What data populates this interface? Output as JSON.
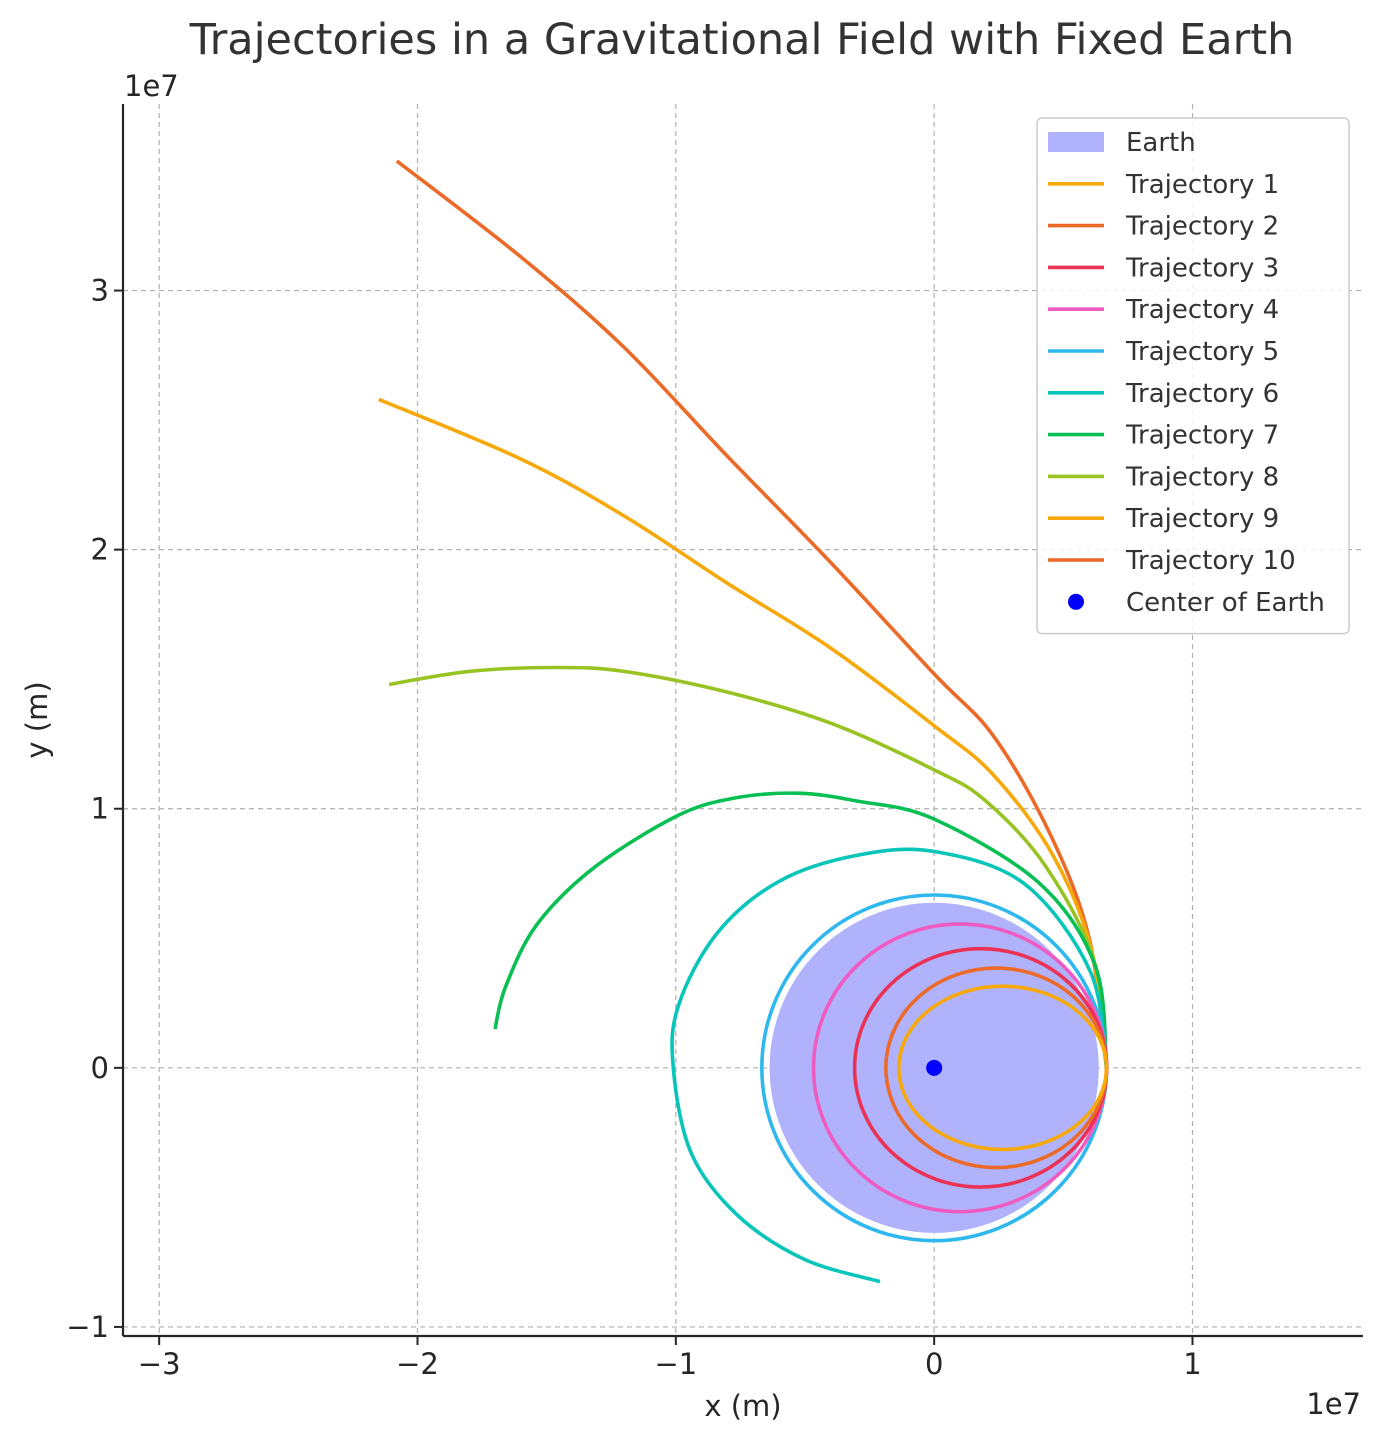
{
  "chart_data": {
    "type": "line",
    "title": "Trajectories in a Gravitational Field with Fixed Earth",
    "xlabel": "x (m)",
    "ylabel": "y (m)",
    "x_offset_label": "1e7",
    "y_offset_label": "1e7",
    "xlim": [
      -31400000,
      16600000
    ],
    "ylim": [
      -10350000,
      37200000
    ],
    "xticks": [
      {
        "value": -30000000,
        "label": "−3"
      },
      {
        "value": -20000000,
        "label": "−2"
      },
      {
        "value": -10000000,
        "label": "−1"
      },
      {
        "value": 0,
        "label": "0"
      },
      {
        "value": 10000000,
        "label": "1"
      }
    ],
    "yticks": [
      {
        "value": -10000000,
        "label": "−1"
      },
      {
        "value": 0,
        "label": "0"
      },
      {
        "value": 10000000,
        "label": "1"
      },
      {
        "value": 20000000,
        "label": "2"
      },
      {
        "value": 30000000,
        "label": "3"
      }
    ],
    "grid": true,
    "legend_position": "top-right",
    "earth": {
      "name": "Earth",
      "center": [
        0,
        0
      ],
      "radius": 6371000,
      "color": "#b0b2fc"
    },
    "center_point": {
      "name": "Center of Earth",
      "x": 0,
      "y": 0,
      "color": "#0000ff"
    },
    "start_point": [
      6671000,
      0
    ],
    "series": [
      {
        "name": "Trajectory 1",
        "color": "#f7a80a",
        "closed": true,
        "apoapsis": 1550000,
        "ellipse": {
          "center_x": 2650000,
          "semi_major": 4020000,
          "semi_minor": 3150000
        }
      },
      {
        "name": "Trajectory 2",
        "color": "#ec6a27",
        "closed": true,
        "apoapsis": 2300000,
        "ellipse": {
          "center_x": 2400000,
          "semi_major": 4270000,
          "semi_minor": 3850000
        }
      },
      {
        "name": "Trajectory 3",
        "color": "#eb3255",
        "closed": true,
        "apoapsis": 3130000,
        "ellipse": {
          "center_x": 1800000,
          "semi_major": 4880000,
          "semi_minor": 4600000
        }
      },
      {
        "name": "Trajectory 4",
        "color": "#ef5bc1",
        "closed": true,
        "apoapsis": 4510000,
        "ellipse": {
          "center_x": 1000000,
          "semi_major": 5670000,
          "semi_minor": 5550000
        }
      },
      {
        "name": "Trajectory 5",
        "color": "#2fb8ed",
        "closed": true,
        "apoapsis": 6671000,
        "ellipse": {
          "center_x": 0,
          "semi_major": 6671000,
          "semi_minor": 6671000
        }
      },
      {
        "name": "Trajectory 6",
        "color": "#07c5b9",
        "closed": false,
        "points": [
          [
            6671000,
            0
          ],
          [
            6050000,
            3700000
          ],
          [
            3500000,
            7100000
          ],
          [
            0,
            8350000
          ],
          [
            -3000000,
            8200000
          ],
          [
            -6000000,
            7200000
          ],
          [
            -8400000,
            5200000
          ],
          [
            -9900000,
            2400000
          ],
          [
            -10100000,
            0
          ],
          [
            -9400000,
            -3300000
          ],
          [
            -7600000,
            -5700000
          ],
          [
            -5000000,
            -7400000
          ],
          [
            -2100000,
            -8250000
          ]
        ]
      },
      {
        "name": "Trajectory 7",
        "color": "#07bf52",
        "closed": false,
        "points": [
          [
            6671000,
            0
          ],
          [
            6250000,
            3900000
          ],
          [
            4100000,
            7100000
          ],
          [
            0,
            9600000
          ],
          [
            -3000000,
            10300000
          ],
          [
            -5300000,
            10600000
          ],
          [
            -7800000,
            10400000
          ],
          [
            -10000000,
            9700000
          ],
          [
            -13200000,
            7700000
          ],
          [
            -15400000,
            5500000
          ],
          [
            -16600000,
            3100000
          ],
          [
            -17000000,
            1500000
          ]
        ]
      },
      {
        "name": "Trajectory 8",
        "color": "#99c323",
        "closed": false,
        "points": [
          [
            6671000,
            0
          ],
          [
            6200000,
            4100000
          ],
          [
            4300000,
            7800000
          ],
          [
            2000000,
            10300000
          ],
          [
            0,
            11500000
          ],
          [
            -4000000,
            13300000
          ],
          [
            -8000000,
            14500000
          ],
          [
            -12000000,
            15300000
          ],
          [
            -14700000,
            15450000
          ],
          [
            -18000000,
            15300000
          ],
          [
            -21100000,
            14800000
          ]
        ]
      },
      {
        "name": "Trajectory 9",
        "color": "#f7a80a",
        "closed": false,
        "points": [
          [
            6671000,
            0
          ],
          [
            6100000,
            4500000
          ],
          [
            4600000,
            8200000
          ],
          [
            2300000,
            11300000
          ],
          [
            0,
            13200000
          ],
          [
            -4000000,
            16200000
          ],
          [
            -8000000,
            18700000
          ],
          [
            -12000000,
            21300000
          ],
          [
            -16000000,
            23500000
          ],
          [
            -21500000,
            25800000
          ]
        ]
      },
      {
        "name": "Trajectory 10",
        "color": "#ec6a27",
        "closed": false,
        "points": [
          [
            6671000,
            0
          ],
          [
            6000000,
            5000000
          ],
          [
            4500000,
            9000000
          ],
          [
            2300000,
            12800000
          ],
          [
            0,
            15200000
          ],
          [
            -4000000,
            19500000
          ],
          [
            -8000000,
            23600000
          ],
          [
            -12000000,
            27800000
          ],
          [
            -16000000,
            31300000
          ],
          [
            -20800000,
            35000000
          ]
        ]
      }
    ]
  }
}
